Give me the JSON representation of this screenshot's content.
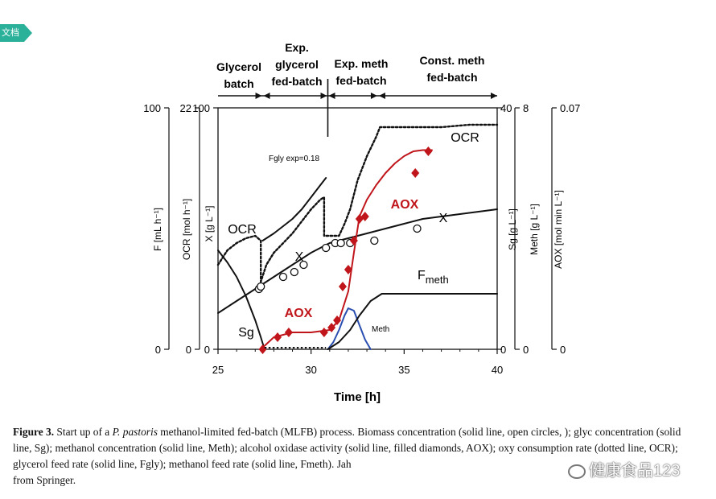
{
  "corner_tag": "文档",
  "chart_data": {
    "type": "line",
    "xlabel": "Time [h]",
    "xlim": [
      25,
      40
    ],
    "x_ticks": [
      "25",
      "30",
      "35",
      "40"
    ],
    "phases": [
      {
        "name": "Glycerol batch",
        "lines": [
          "Glycerol",
          "batch"
        ]
      },
      {
        "name": "Exp. glycerol fed-batch",
        "lines": [
          "Exp.",
          "glycerol",
          "fed-batch"
        ]
      },
      {
        "name": "Exp. meth fed-batch",
        "lines": [
          "Exp. meth",
          "fed-batch"
        ]
      },
      {
        "name": "Const. meth fed-batch",
        "lines": [
          "Const. meth",
          "fed-batch"
        ]
      }
    ],
    "left_axes": [
      {
        "label": "F [mL h⁻¹]",
        "top": "100",
        "bottom": "0"
      },
      {
        "label": "OCR [mol h⁻¹]",
        "top": "22",
        "bottom": "0"
      },
      {
        "label": "X [g L⁻¹]",
        "top": "100",
        "bottom": "0"
      }
    ],
    "right_axes": [
      {
        "label": "Sg [g L⁻¹]",
        "top": "40",
        "bottom": "0"
      },
      {
        "label": "Meth [g L⁻¹]",
        "top": "8",
        "bottom": "0"
      },
      {
        "label": "AOX [mol min L⁻¹]",
        "top": "0.07",
        "bottom": "0"
      }
    ],
    "series_labels": {
      "ocr_left": "OCR",
      "ocr_right": "OCR",
      "x_left": "X",
      "x_right": "X",
      "sg": "Sg",
      "aox_low": "AOX",
      "aox_high": "AOX",
      "fmeth": "F",
      "fmeth_sub": "meth",
      "meth": "Meth",
      "fgly": "Fgly exp=0.18"
    },
    "units_note": "all series below expressed on a normalized 0-100 scale (percent of respective axis)",
    "series": [
      {
        "name": "Biomass X",
        "style": "solid line, open circles",
        "color": "#111111",
        "points": [
          [
            25,
            15
          ],
          [
            26,
            20
          ],
          [
            27,
            25
          ],
          [
            28,
            30
          ],
          [
            29,
            35
          ],
          [
            30,
            40
          ],
          [
            30.5,
            42
          ],
          [
            31,
            44
          ],
          [
            32,
            46
          ],
          [
            33,
            48
          ],
          [
            34,
            50
          ],
          [
            35,
            52
          ],
          [
            36,
            54
          ],
          [
            37,
            55
          ],
          [
            38,
            56
          ],
          [
            39,
            57
          ],
          [
            40,
            58
          ]
        ],
        "markers": [
          [
            27.2,
            25
          ],
          [
            27.3,
            26
          ],
          [
            28.5,
            30
          ],
          [
            29.1,
            32
          ],
          [
            29.6,
            35
          ],
          [
            30.8,
            42
          ],
          [
            31.3,
            44
          ],
          [
            31.6,
            44
          ],
          [
            32.1,
            44
          ],
          [
            33.4,
            45
          ],
          [
            35.7,
            50
          ]
        ]
      },
      {
        "name": "Glycerol Sg",
        "style": "solid line",
        "color": "#111111",
        "points": [
          [
            25,
            41
          ],
          [
            25.5,
            36
          ],
          [
            26,
            30
          ],
          [
            26.5,
            22
          ],
          [
            27,
            12
          ],
          [
            27.3,
            5
          ],
          [
            27.5,
            0
          ]
        ]
      },
      {
        "name": "Methanol Meth",
        "style": "solid line",
        "color": "#2a4fb0",
        "points": [
          [
            30.9,
            0
          ],
          [
            31.2,
            3
          ],
          [
            31.5,
            8
          ],
          [
            31.8,
            14
          ],
          [
            32.0,
            17
          ],
          [
            32.3,
            16
          ],
          [
            32.6,
            10
          ],
          [
            32.9,
            4
          ],
          [
            33.2,
            0
          ]
        ]
      },
      {
        "name": "AOX",
        "style": "solid line, filled diamonds",
        "color": "#c0161b",
        "points": [
          [
            27.3,
            0
          ],
          [
            28,
            5
          ],
          [
            29,
            7
          ],
          [
            30,
            7
          ],
          [
            31,
            8
          ],
          [
            31.5,
            12
          ],
          [
            32,
            24
          ],
          [
            32.3,
            40
          ],
          [
            32.6,
            55
          ],
          [
            33,
            62
          ],
          [
            33.5,
            68
          ],
          [
            34,
            73
          ],
          [
            34.5,
            77
          ],
          [
            35,
            80
          ],
          [
            35.5,
            82
          ],
          [
            36,
            82.5
          ],
          [
            36.5,
            82.5
          ]
        ],
        "markers": [
          [
            27.4,
            0
          ],
          [
            28.2,
            5
          ],
          [
            28.8,
            7
          ],
          [
            30.7,
            7
          ],
          [
            31.1,
            9
          ],
          [
            31.4,
            12
          ],
          [
            31.7,
            26
          ],
          [
            32.0,
            33
          ],
          [
            32.3,
            45
          ],
          [
            32.6,
            54
          ],
          [
            32.9,
            55
          ],
          [
            35.6,
            73
          ],
          [
            36.3,
            82
          ]
        ]
      },
      {
        "name": "OCR",
        "style": "dotted line",
        "color": "#111111",
        "points": [
          [
            25,
            35
          ],
          [
            25.5,
            41
          ],
          [
            26,
            44
          ],
          [
            26.5,
            46
          ],
          [
            27,
            47
          ],
          [
            27.3,
            45
          ],
          [
            27.3,
            28
          ],
          [
            27.6,
            35
          ],
          [
            28,
            40
          ],
          [
            28.5,
            44
          ],
          [
            29,
            48
          ],
          [
            29.5,
            53
          ],
          [
            30,
            58
          ],
          [
            30.5,
            62
          ],
          [
            30.7,
            63
          ],
          [
            30.7,
            47
          ],
          [
            31,
            47
          ],
          [
            31.5,
            47
          ],
          [
            31.8,
            52
          ],
          [
            32.1,
            58
          ],
          [
            32.5,
            70
          ],
          [
            33,
            80
          ],
          [
            33.5,
            88
          ],
          [
            33.7,
            92
          ],
          [
            35,
            92
          ],
          [
            37,
            92
          ],
          [
            38.5,
            93
          ],
          [
            40,
            93
          ]
        ]
      },
      {
        "name": "Glycerol feed Fgly",
        "style": "solid line",
        "color": "#111111",
        "points": [
          [
            27.4,
            45
          ],
          [
            28,
            48
          ],
          [
            28.5,
            51
          ],
          [
            29,
            54
          ],
          [
            29.5,
            58
          ],
          [
            30,
            63
          ],
          [
            30.5,
            68
          ],
          [
            30.8,
            71
          ]
        ]
      },
      {
        "name": "Methanol feed Fmeth",
        "style": "solid line",
        "color": "#111111",
        "points": [
          [
            30.9,
            0
          ],
          [
            31.5,
            3
          ],
          [
            32.1,
            8
          ],
          [
            32.6,
            14
          ],
          [
            33.2,
            20
          ],
          [
            33.8,
            23
          ],
          [
            35,
            23
          ],
          [
            36,
            23
          ],
          [
            38,
            23
          ],
          [
            40,
            23
          ]
        ]
      }
    ]
  },
  "caption": {
    "figure_num": "Figure 3.",
    "text_a": " Start up of a ",
    "species": "P. pastoris",
    "text_b": " methanol-limited fed-batch (MLFB) process. Biomass concentration (solid line, open circles,    ); glyc concentration (solid line, Sg); methanol concentration (solid line, Meth); alcohol oxidase activity (solid line, filled diamonds, AOX); oxy consumption rate (dotted line, OCR); glycerol feed rate (solid line, Fgly); methanol feed rate (solid line, Fmeth). Jah",
    "text_c": " from Springer."
  },
  "watermark": "健康食品123"
}
